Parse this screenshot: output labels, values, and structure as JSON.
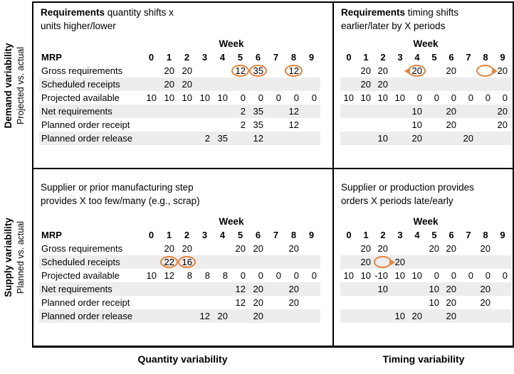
{
  "colors": {
    "accent": "#e8833a",
    "row_band": "#ededed",
    "border": "#000000"
  },
  "axes": {
    "left_top": {
      "title": "Demand variability",
      "subtitle": "Projected vs. actual"
    },
    "left_bottom": {
      "title": "Supply variability",
      "subtitle": "Planned vs. actual"
    },
    "bottom_left_label": "Quantity variability",
    "bottom_right_label": "Timing variability"
  },
  "table": {
    "week_label": "Week",
    "corner_label": "MRP",
    "week_numbers": [
      "0",
      "1",
      "2",
      "3",
      "4",
      "5",
      "6",
      "7",
      "8",
      "9"
    ],
    "row_labels": [
      "Gross requirements",
      "Scheduled receipts",
      "Projected available",
      "Net requirements",
      "Planned order receipt",
      "Planned order release"
    ]
  },
  "quadrants": {
    "top_left": {
      "title": [
        {
          "bold": "Requirements",
          "rest": " quantity shifts x"
        },
        {
          "bold": "",
          "rest": "units higher/lower"
        }
      ],
      "show_row_labels": true,
      "rows": [
        {
          "cells": [
            "",
            "20",
            "20",
            "",
            "",
            "12",
            "35",
            "",
            "12",
            ""
          ],
          "markers": [
            {
              "col": 5,
              "type": "circle"
            },
            {
              "col": 6,
              "type": "circle"
            },
            {
              "col": 8,
              "type": "circle"
            }
          ]
        },
        {
          "cells": [
            "",
            "20",
            "20",
            "",
            "",
            "",
            "",
            "",
            "",
            ""
          ]
        },
        {
          "cells": [
            "10",
            "10",
            "10",
            "10",
            "10",
            "0",
            "0",
            "0",
            "0",
            "0"
          ]
        },
        {
          "cells": [
            "",
            "",
            "",
            "",
            "",
            "2",
            "35",
            "",
            "12",
            ""
          ]
        },
        {
          "cells": [
            "",
            "",
            "",
            "",
            "",
            "2",
            "35",
            "",
            "12",
            ""
          ]
        },
        {
          "cells": [
            "",
            "",
            "",
            "2",
            "35",
            "",
            "12",
            "",
            "",
            ""
          ]
        }
      ]
    },
    "top_right": {
      "title": [
        {
          "bold": "Requirements",
          "rest": " timing shifts"
        },
        {
          "bold": "",
          "rest": "earlier/later by X periods"
        }
      ],
      "show_row_labels": false,
      "rows": [
        {
          "cells": [
            "",
            "20",
            "20",
            "",
            "20",
            "",
            "20",
            "",
            "",
            "20"
          ],
          "markers": [
            {
              "col": 4,
              "type": "circle-arrow-left"
            },
            {
              "col": 8,
              "type": "circle-arrow-right"
            }
          ]
        },
        {
          "cells": [
            "",
            "20",
            "20",
            "",
            "",
            "",
            "",
            "",
            "",
            ""
          ]
        },
        {
          "cells": [
            "10",
            "10",
            "10",
            "10",
            "0",
            "0",
            "0",
            "0",
            "0",
            "0"
          ]
        },
        {
          "cells": [
            "",
            "",
            "",
            "",
            "10",
            "",
            "20",
            "",
            "",
            "20"
          ]
        },
        {
          "cells": [
            "",
            "",
            "",
            "",
            "10",
            "",
            "20",
            "",
            "",
            "20"
          ]
        },
        {
          "cells": [
            "",
            "",
            "10",
            "",
            "20",
            "",
            "",
            "20",
            "",
            ""
          ]
        }
      ]
    },
    "bottom_left": {
      "title": [
        {
          "bold": "",
          "rest": "Supplier or prior manufacturing step"
        },
        {
          "bold": "",
          "rest": "provides X too few/many (e.g., scrap)"
        }
      ],
      "show_row_labels": true,
      "rows": [
        {
          "cells": [
            "",
            "20",
            "20",
            "",
            "",
            "20",
            "20",
            "",
            "20",
            ""
          ]
        },
        {
          "cells": [
            "",
            "22",
            "16",
            "",
            "",
            "",
            "",
            "",
            "",
            ""
          ],
          "markers": [
            {
              "col": 1,
              "type": "circle"
            },
            {
              "col": 2,
              "type": "circle"
            }
          ]
        },
        {
          "cells": [
            "10",
            "12",
            "8",
            "8",
            "8",
            "0",
            "0",
            "0",
            "0",
            "0"
          ]
        },
        {
          "cells": [
            "",
            "",
            "",
            "",
            "",
            "12",
            "20",
            "",
            "20",
            ""
          ]
        },
        {
          "cells": [
            "",
            "",
            "",
            "",
            "",
            "12",
            "20",
            "",
            "20",
            ""
          ]
        },
        {
          "cells": [
            "",
            "",
            "",
            "12",
            "20",
            "",
            "20",
            "",
            "",
            ""
          ]
        }
      ]
    },
    "bottom_right": {
      "title": [
        {
          "bold": "",
          "rest": "Supplier or production provides"
        },
        {
          "bold": "",
          "rest": "orders X periods late/early"
        }
      ],
      "show_row_labels": false,
      "rows": [
        {
          "cells": [
            "",
            "20",
            "20",
            "",
            "",
            "20",
            "20",
            "",
            "20",
            ""
          ]
        },
        {
          "cells": [
            "",
            "20",
            "",
            "20",
            "",
            "",
            "",
            "",
            "",
            ""
          ],
          "markers": [
            {
              "col": 2,
              "type": "circle-arrow-right"
            }
          ]
        },
        {
          "cells": [
            "10",
            "10",
            "-10",
            "10",
            "10",
            "0",
            "0",
            "0",
            "0",
            "0"
          ]
        },
        {
          "cells": [
            "",
            "",
            "10",
            "",
            "",
            "10",
            "20",
            "",
            "20",
            ""
          ]
        },
        {
          "cells": [
            "",
            "",
            "",
            "",
            "",
            "10",
            "20",
            "",
            "20",
            ""
          ]
        },
        {
          "cells": [
            "",
            "",
            "",
            "10",
            "20",
            "",
            "20",
            "",
            "",
            ""
          ]
        }
      ]
    }
  }
}
